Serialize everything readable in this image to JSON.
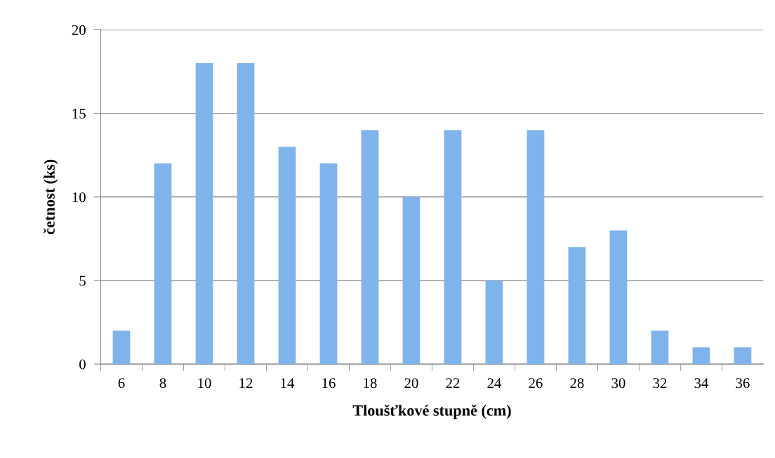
{
  "chart_data": {
    "type": "bar",
    "categories": [
      "6",
      "8",
      "10",
      "12",
      "14",
      "16",
      "18",
      "20",
      "22",
      "24",
      "26",
      "28",
      "30",
      "32",
      "34",
      "36"
    ],
    "values": [
      2,
      12,
      18,
      18,
      13,
      12,
      14,
      10,
      14,
      5,
      14,
      7,
      8,
      2,
      1,
      1
    ],
    "color": "#7fb3ec",
    "xlabel": "Tloušťkové stupně (cm)",
    "ylabel": "četnost (ks)",
    "ylim": [
      0,
      20
    ],
    "yticks": [
      0,
      5,
      10,
      15,
      20
    ],
    "grid": "y"
  }
}
